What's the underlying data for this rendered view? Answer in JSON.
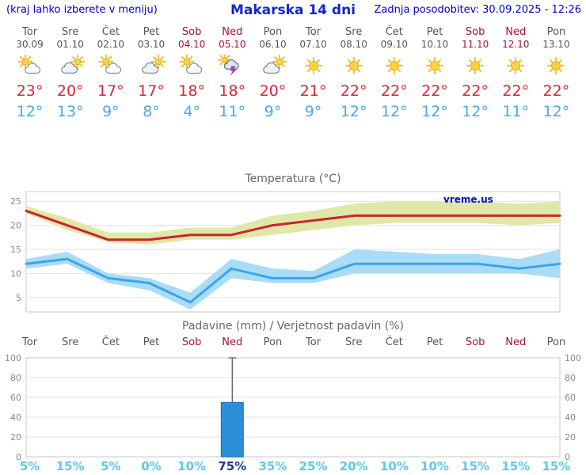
{
  "header": {
    "hint": "(kraj lahko izberete v meniju)",
    "title": "Makarska 14 dni",
    "updated": "Zadnja posodobitev: 30.09.2025 - 12:26"
  },
  "colors": {
    "header_blue": "#0000cc",
    "title_blue": "#1326cc",
    "weekday_gray": "#555555",
    "weekend_red": "#a5113d",
    "temp_max_red": "#d92535",
    "temp_min_blue": "#4aa9e9",
    "max_band": "#dfe8a6",
    "min_band": "#aadcf6",
    "precip_bar_blue": "#2b8fd8",
    "probability_cyan": "#5cc9e8",
    "probability_highlight": "#1c3a8e"
  },
  "days": [
    {
      "name": "Tor",
      "date": "30.09",
      "weekend": false,
      "icon": "partly-sunny",
      "tmax": "23°",
      "tmin": "12°",
      "precip_prob": "5%",
      "prob_highlight": false
    },
    {
      "name": "Sre",
      "date": "01.10",
      "weekend": false,
      "icon": "mostly-cloudy",
      "tmax": "20°",
      "tmin": "13°",
      "precip_prob": "15%",
      "prob_highlight": false
    },
    {
      "name": "Čet",
      "date": "02.10",
      "weekend": false,
      "icon": "partly-sunny",
      "tmax": "17°",
      "tmin": "9°",
      "precip_prob": "5%",
      "prob_highlight": false
    },
    {
      "name": "Pet",
      "date": "03.10",
      "weekend": false,
      "icon": "mostly-cloudy",
      "tmax": "17°",
      "tmin": "8°",
      "precip_prob": "0%",
      "prob_highlight": false
    },
    {
      "name": "Sob",
      "date": "04.10",
      "weekend": true,
      "icon": "partly-sunny",
      "tmax": "18°",
      "tmin": "4°",
      "precip_prob": "10%",
      "prob_highlight": false
    },
    {
      "name": "Ned",
      "date": "05.10",
      "weekend": true,
      "icon": "thunderstorm",
      "tmax": "18°",
      "tmin": "11°",
      "precip_prob": "75%",
      "prob_highlight": true
    },
    {
      "name": "Pon",
      "date": "06.10",
      "weekend": false,
      "icon": "mostly-cloudy",
      "tmax": "20°",
      "tmin": "9°",
      "precip_prob": "35%",
      "prob_highlight": false
    },
    {
      "name": "Tor",
      "date": "07.10",
      "weekend": false,
      "icon": "sunny",
      "tmax": "21°",
      "tmin": "9°",
      "precip_prob": "25%",
      "prob_highlight": false
    },
    {
      "name": "Sre",
      "date": "08.10",
      "weekend": false,
      "icon": "sunny",
      "tmax": "22°",
      "tmin": "12°",
      "precip_prob": "20%",
      "prob_highlight": false
    },
    {
      "name": "Čet",
      "date": "09.10",
      "weekend": false,
      "icon": "sunny",
      "tmax": "22°",
      "tmin": "12°",
      "precip_prob": "10%",
      "prob_highlight": false
    },
    {
      "name": "Pet",
      "date": "10.10",
      "weekend": false,
      "icon": "sunny",
      "tmax": "22°",
      "tmin": "12°",
      "precip_prob": "10%",
      "prob_highlight": false
    },
    {
      "name": "Sob",
      "date": "11.10",
      "weekend": true,
      "icon": "sunny",
      "tmax": "22°",
      "tmin": "12°",
      "precip_prob": "15%",
      "prob_highlight": false
    },
    {
      "name": "Ned",
      "date": "12.10",
      "weekend": true,
      "icon": "sunny",
      "tmax": "22°",
      "tmin": "11°",
      "precip_prob": "15%",
      "prob_highlight": false
    },
    {
      "name": "Pon",
      "date": "13.10",
      "weekend": false,
      "icon": "sunny",
      "tmax": "22°",
      "tmin": "12°",
      "precip_prob": "15%",
      "prob_highlight": false
    }
  ],
  "chart_data": [
    {
      "type": "line",
      "title": "Temperatura (°C)",
      "categories": [
        "Tor 30.09",
        "Sre 01.10",
        "Čet 02.10",
        "Pet 03.10",
        "Sob 04.10",
        "Ned 05.10",
        "Pon 06.10",
        "Tor 07.10",
        "Sre 08.10",
        "Čet 09.10",
        "Pet 10.10",
        "Sob 11.10",
        "Ned 12.10",
        "Pon 13.10"
      ],
      "ylim": [
        2,
        27
      ],
      "yticks": [
        5,
        10,
        15,
        20,
        25
      ],
      "grid": true,
      "watermark": "vreme.us",
      "series": [
        {
          "name": "max-temperature",
          "color": "#cc2233",
          "band_color": "#dfe8a6",
          "values": [
            23,
            20,
            17,
            17,
            18,
            18,
            20,
            21,
            22,
            22,
            22,
            22,
            22,
            22
          ],
          "band_upper": [
            24,
            21.5,
            18.5,
            18.5,
            19.5,
            19.5,
            22,
            23,
            24.5,
            25,
            25,
            25,
            24.5,
            25
          ],
          "band_lower": [
            22.5,
            19,
            16.5,
            16,
            17,
            17,
            18,
            19,
            20,
            20.5,
            20.5,
            20.5,
            20,
            20.5
          ]
        },
        {
          "name": "min-temperature",
          "color": "#3aa5e8",
          "band_color": "#aadcf6",
          "values": [
            12,
            13,
            9,
            8,
            4,
            11,
            9,
            9,
            12,
            12,
            12,
            12,
            11,
            12
          ],
          "band_upper": [
            13,
            14.5,
            10,
            9,
            6,
            13,
            11,
            10.5,
            15,
            14.5,
            14,
            14,
            13,
            15
          ],
          "band_lower": [
            11,
            12,
            8,
            6.5,
            2.5,
            9,
            8,
            8,
            10,
            10,
            10,
            10,
            10,
            9
          ]
        }
      ]
    },
    {
      "type": "bar",
      "title": "Padavine (mm) / Verjetnost padavin (%)",
      "categories": [
        "Tor",
        "Sre",
        "Čet",
        "Pet",
        "Sob",
        "Ned",
        "Pon",
        "Tor",
        "Sre",
        "Čet",
        "Pet",
        "Sob",
        "Ned",
        "Pon"
      ],
      "ylim": [
        0,
        100
      ],
      "yticks": [
        0,
        20,
        40,
        60,
        80,
        100
      ],
      "grid": true,
      "bar_color": "#2b8fd8",
      "values": [
        0,
        0,
        0,
        0,
        0,
        55,
        0,
        0,
        0,
        0,
        0,
        0,
        0,
        0
      ],
      "whisker_high": [
        null,
        null,
        null,
        null,
        null,
        100,
        null,
        null,
        null,
        null,
        null,
        null,
        null,
        null
      ],
      "probabilities": [
        "5%",
        "15%",
        "5%",
        "0%",
        "10%",
        "75%",
        "35%",
        "25%",
        "20%",
        "10%",
        "10%",
        "15%",
        "15%",
        "15%"
      ]
    }
  ]
}
